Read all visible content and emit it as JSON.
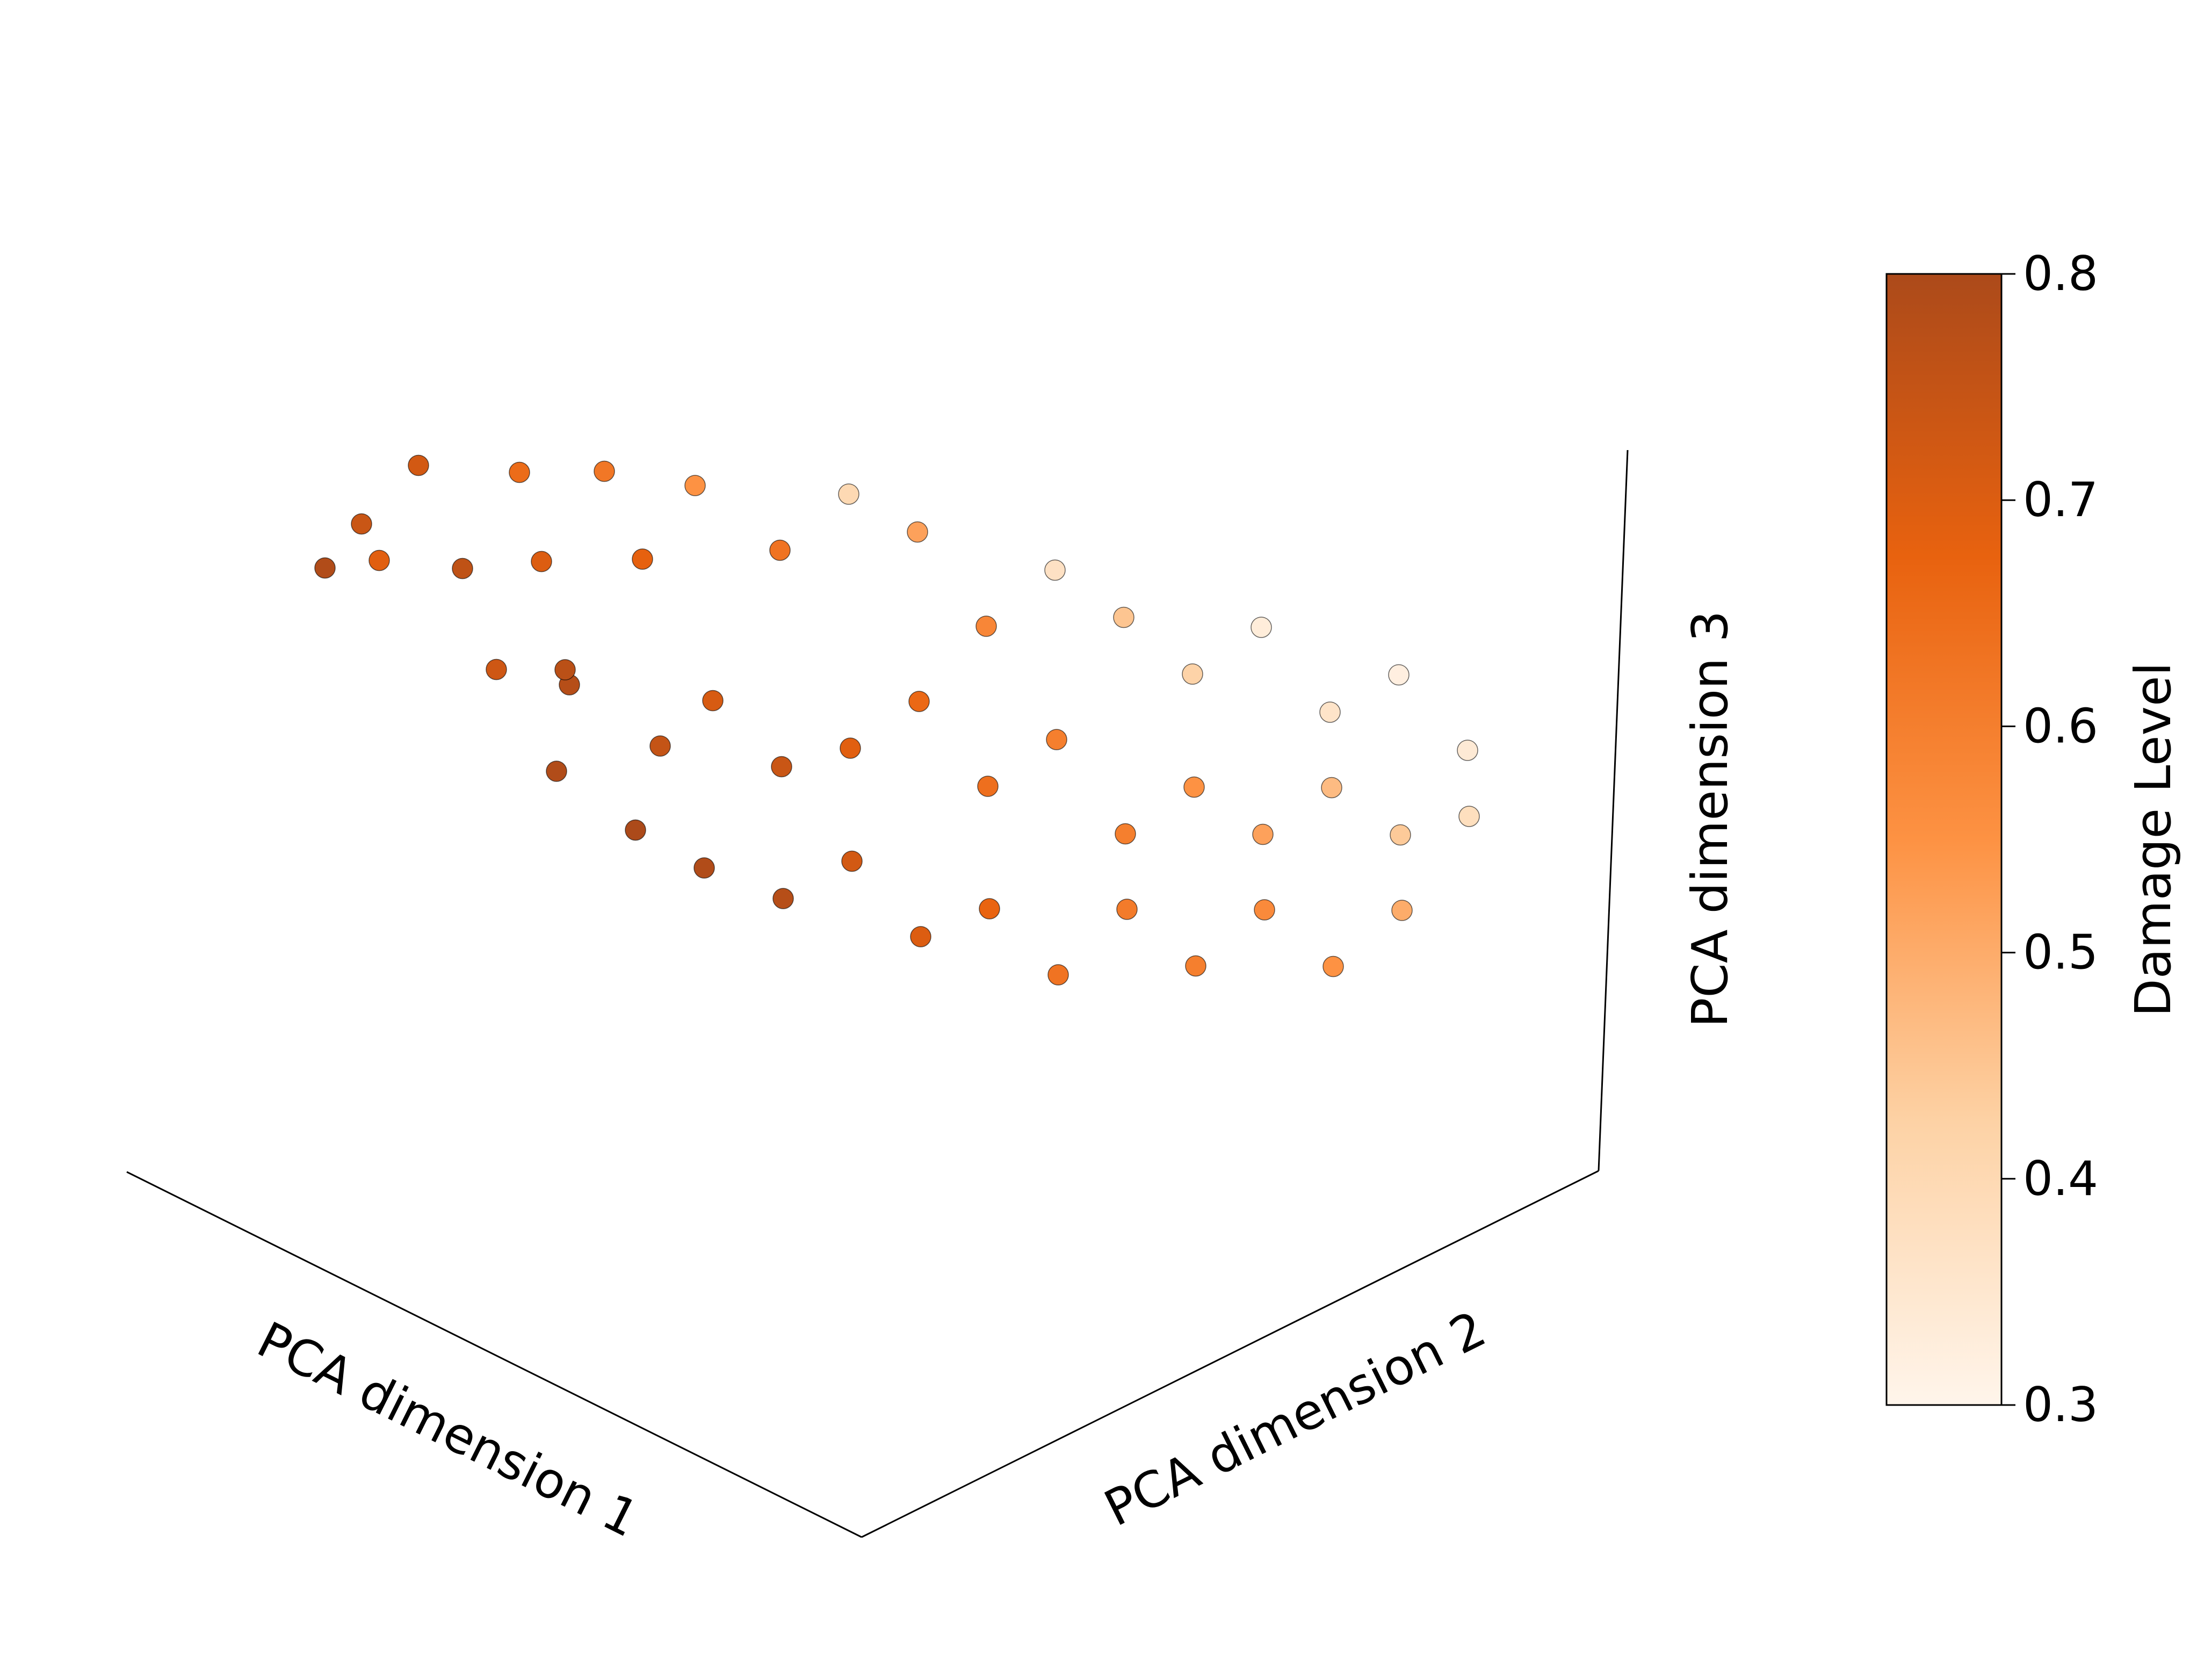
{
  "chart_data": {
    "type": "scatter",
    "projection": "3d",
    "title": "",
    "xlabel": "PCA dimension 1",
    "ylabel": "PCA dimension 2",
    "zlabel": "PCA dimension 3",
    "grid": false,
    "legend": "none",
    "colorbar": {
      "label": "Damage Level",
      "colormap": "Oranges",
      "placement": "right",
      "min": 0.3,
      "max": 0.8,
      "ticks": [
        "0.3",
        "0.4",
        "0.5",
        "0.6",
        "0.7",
        "0.8"
      ],
      "stops": [
        "#fff5eb",
        "#fdd2a5",
        "#fd9243",
        "#e8620f",
        "#ac4a1a"
      ]
    },
    "marker": {
      "shape": "circle",
      "edge_color": "#000000"
    },
    "series": [
      {
        "points": [
          [
            -2.6,
            -0.5,
            1.2,
            0.79
          ],
          [
            -2.5,
            -0.3,
            1.6,
            0.74
          ],
          [
            -2.2,
            -0.6,
            1.7,
            0.69
          ],
          [
            -2.4,
            0.1,
            2.0,
            0.72
          ],
          [
            -2.0,
            -0.1,
            1.4,
            0.76
          ],
          [
            -1.9,
            0.3,
            2.2,
            0.65
          ],
          [
            -1.7,
            0.2,
            1.5,
            0.7
          ],
          [
            -1.6,
            -0.4,
            0.9,
            0.73
          ],
          [
            -1.5,
            0.5,
            2.4,
            0.62
          ],
          [
            -1.4,
            0.0,
            0.6,
            0.78
          ],
          [
            -1.3,
            -0.2,
            1.0,
            0.77
          ],
          [
            -1.2,
            0.4,
            1.8,
            0.68
          ],
          [
            -1.1,
            -0.6,
            0.4,
            0.79
          ],
          [
            -1.0,
            0.6,
            2.6,
            0.55
          ],
          [
            -0.9,
            0.1,
            0.3,
            0.75
          ],
          [
            -0.8,
            -0.3,
            -0.2,
            0.8
          ],
          [
            -0.7,
            0.3,
            0.8,
            0.71
          ],
          [
            -0.6,
            0.8,
            2.1,
            0.63
          ],
          [
            -0.5,
            -0.1,
            -0.5,
            0.79
          ],
          [
            -0.4,
            0.5,
            0.2,
            0.74
          ],
          [
            -0.3,
            1.0,
            2.8,
            0.4
          ],
          [
            -0.2,
            0.2,
            -0.8,
            0.78
          ],
          [
            -0.1,
            0.7,
            0.5,
            0.69
          ],
          [
            0.0,
            1.2,
            2.5,
            0.52
          ],
          [
            0.1,
            0.4,
            -0.3,
            0.72
          ],
          [
            0.2,
            0.9,
            1.1,
            0.66
          ],
          [
            0.3,
            1.4,
            1.6,
            0.58
          ],
          [
            0.4,
            0.6,
            -1.0,
            0.7
          ],
          [
            0.5,
            1.1,
            0.3,
            0.64
          ],
          [
            0.6,
            1.6,
            2.3,
            0.37
          ],
          [
            0.7,
            0.8,
            -0.6,
            0.67
          ],
          [
            0.8,
            1.3,
            0.9,
            0.6
          ],
          [
            0.9,
            1.8,
            1.9,
            0.45
          ],
          [
            1.0,
            1.0,
            -1.2,
            0.63
          ],
          [
            1.1,
            1.5,
            0.0,
            0.6
          ],
          [
            1.2,
            2.0,
            1.4,
            0.42
          ],
          [
            1.3,
            1.2,
            -0.4,
            0.61
          ],
          [
            1.4,
            1.7,
            0.6,
            0.55
          ],
          [
            1.5,
            2.2,
            2.0,
            0.33
          ],
          [
            1.6,
            1.4,
            -0.9,
            0.6
          ],
          [
            1.7,
            1.9,
            0.2,
            0.52
          ],
          [
            1.8,
            2.4,
            1.2,
            0.36
          ],
          [
            1.9,
            1.6,
            -0.2,
            0.57
          ],
          [
            2.0,
            2.1,
            0.8,
            0.47
          ],
          [
            2.1,
            2.6,
            1.7,
            0.32
          ],
          [
            2.2,
            1.8,
            -0.7,
            0.55
          ],
          [
            2.3,
            2.3,
            0.4,
            0.44
          ],
          [
            2.4,
            2.8,
            1.0,
            0.34
          ],
          [
            2.5,
            2.0,
            0.0,
            0.5
          ],
          [
            2.6,
            2.5,
            0.7,
            0.38
          ]
        ]
      }
    ]
  }
}
